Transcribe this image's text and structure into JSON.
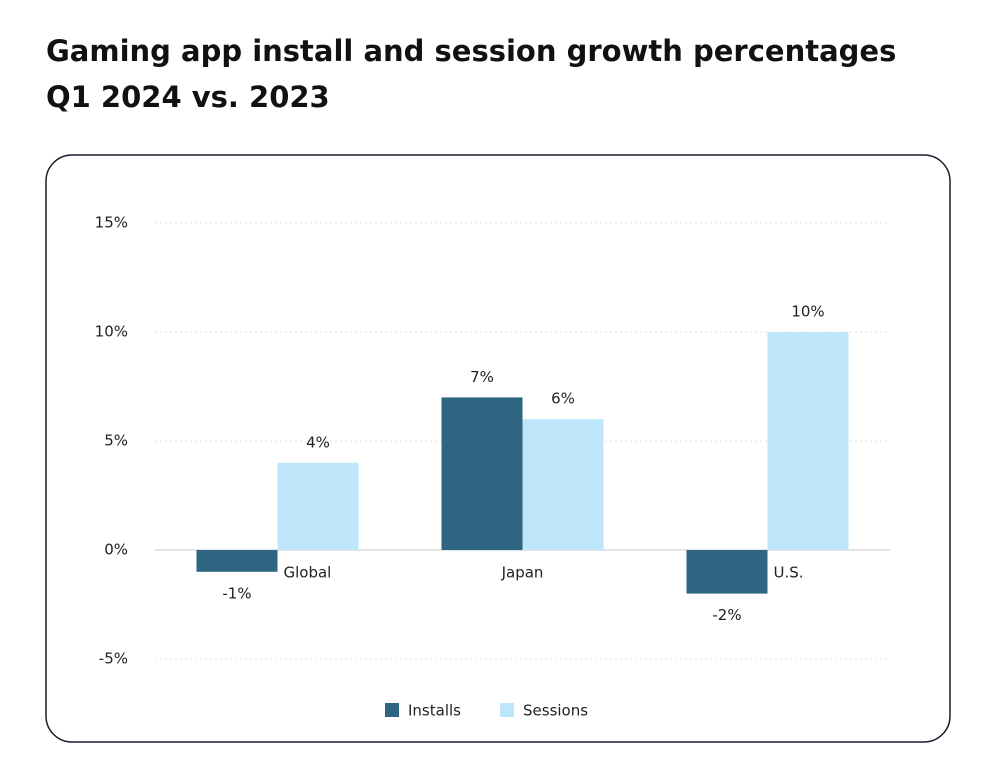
{
  "chart_data": {
    "type": "bar",
    "title": "Gaming app install and session growth percentages",
    "subtitle": "Q1 2024 vs. 2023",
    "categories": [
      "Global",
      "Japan",
      "U.S."
    ],
    "series": [
      {
        "name": "Installs",
        "color": "#2e6580",
        "values": [
          -1,
          7,
          -2
        ],
        "value_labels": [
          "-1%",
          "7%",
          "-2%"
        ]
      },
      {
        "name": "Sessions",
        "color": "#bde6fb",
        "values": [
          4,
          6,
          10
        ],
        "value_labels": [
          "4%",
          "6%",
          "10%"
        ]
      }
    ],
    "ylim": [
      -5,
      15
    ],
    "yticks": [
      {
        "value": -5,
        "label": "-5%"
      },
      {
        "value": 0,
        "label": "0%"
      },
      {
        "value": 5,
        "label": "5%"
      },
      {
        "value": 10,
        "label": "10%"
      },
      {
        "value": 15,
        "label": "15%"
      }
    ],
    "grid": true,
    "legend": "bottom"
  }
}
